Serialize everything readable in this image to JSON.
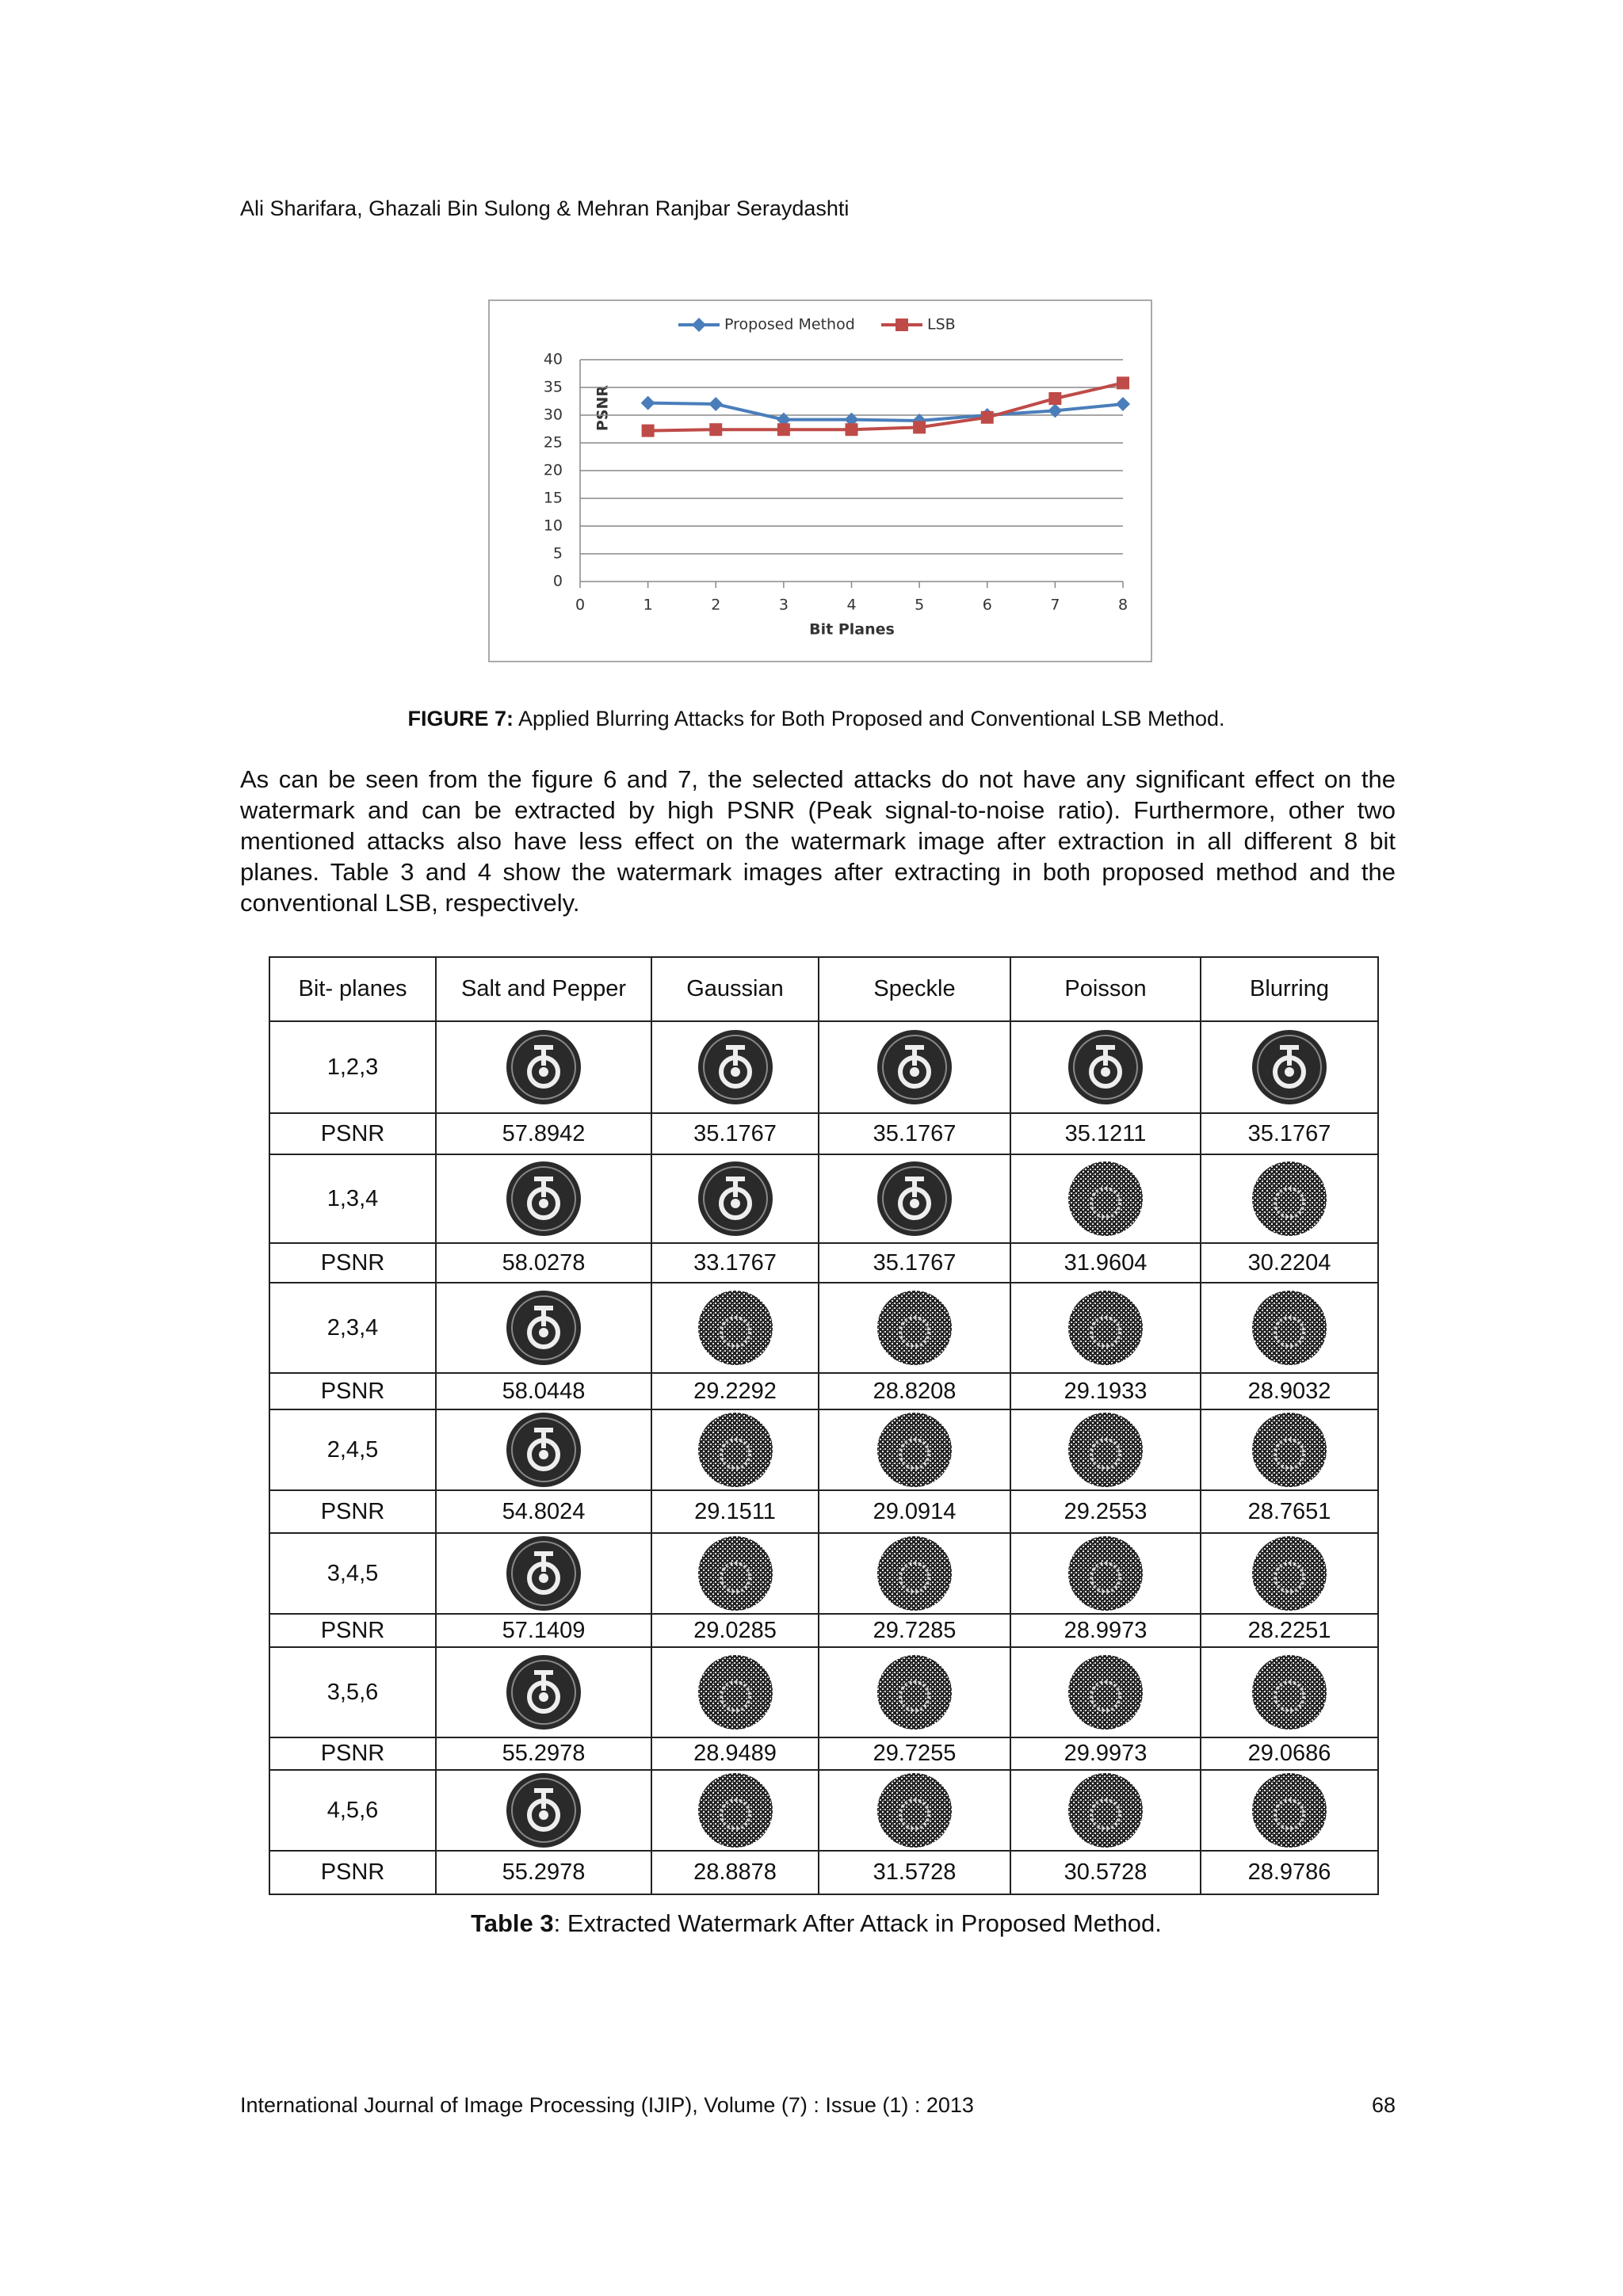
{
  "header": {
    "authors": "Ali Sharifara, Ghazali Bin Sulong & Mehran Ranjbar Seraydashti"
  },
  "chart_data": {
    "type": "line",
    "x": [
      1,
      2,
      3,
      4,
      5,
      6,
      7,
      8
    ],
    "xlim": [
      0,
      8
    ],
    "xticks": [
      0,
      1,
      2,
      3,
      4,
      5,
      6,
      7,
      8
    ],
    "ylim": [
      0,
      40
    ],
    "yticks": [
      0,
      5,
      10,
      15,
      20,
      25,
      30,
      35,
      40
    ],
    "xlabel": "Bit Planes",
    "ylabel": "PSNR",
    "grid": true,
    "legend": "top",
    "series": [
      {
        "name": "Proposed Method",
        "color": "#4a7ebb",
        "marker": "diamond",
        "values": [
          32.2,
          32,
          29.2,
          29.2,
          29,
          30,
          30.8,
          32
        ]
      },
      {
        "name": "LSB",
        "color": "#be4b48",
        "marker": "square",
        "values": [
          27.2,
          27.4,
          27.4,
          27.4,
          27.8,
          29.6,
          33,
          35.8
        ]
      }
    ]
  },
  "figure_caption": {
    "label": "FIGURE 7:",
    "text": "Applied Blurring Attacks for Both Proposed and Conventional LSB Method."
  },
  "paragraph": "As can be seen from the figure 6 and 7, the selected attacks do not have any significant effect on the watermark and can be extracted by high PSNR (Peak signal-to-noise ratio). Furthermore, other two mentioned attacks also have less effect on the watermark image after extraction in all different 8 bit planes. Table 3 and 4 show the watermark images after extracting in both proposed method and the conventional LSB, respectively.",
  "table": {
    "columns": [
      "Bit- planes",
      "Salt and Pepper",
      "Gaussian",
      "Speckle",
      "Poisson",
      "Blurring"
    ],
    "rows": [
      {
        "bit_planes": "1,2,3",
        "psnr_label": "PSNR",
        "psnr": [
          57.8942,
          35.1767,
          35.1767,
          35.1211,
          35.1767
        ]
      },
      {
        "bit_planes": "1,3,4",
        "psnr_label": "PSNR",
        "psnr": [
          58.0278,
          33.1767,
          35.1767,
          31.9604,
          30.2204
        ]
      },
      {
        "bit_planes": "2,3,4",
        "psnr_label": "PSNR",
        "psnr": [
          58.0448,
          29.2292,
          28.8208,
          29.1933,
          28.9032
        ]
      },
      {
        "bit_planes": "2,4,5",
        "psnr_label": "PSNR",
        "psnr": [
          54.8024,
          29.1511,
          29.0914,
          29.2553,
          28.7651
        ]
      },
      {
        "bit_planes": "3,4,5",
        "psnr_label": "PSNR",
        "psnr": [
          57.1409,
          29.0285,
          29.7285,
          28.9973,
          28.2251
        ]
      },
      {
        "bit_planes": "3,5,6",
        "psnr_label": "PSNR",
        "psnr": [
          55.2978,
          28.9489,
          29.7255,
          29.9973,
          29.0686
        ]
      },
      {
        "bit_planes": "4,5,6",
        "psnr_label": "PSNR",
        "psnr": [
          55.2978,
          28.8878,
          31.5728,
          30.5728,
          28.9786
        ]
      }
    ]
  },
  "table_caption": {
    "label": "Table 3",
    "text": ": Extracted Watermark After Attack in Proposed Method."
  },
  "footer": {
    "journal": "International Journal of Image Processing (IJIP), Volume (7) : Issue (1) : 2013",
    "page": "68"
  }
}
